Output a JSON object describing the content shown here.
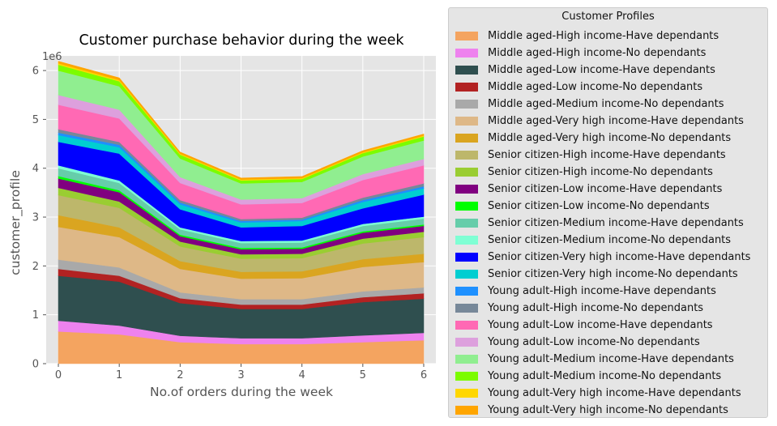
{
  "chart_data": {
    "type": "area",
    "stacked": true,
    "title": "Customer purchase behavior during the week",
    "xlabel": "No.of orders during the week",
    "ylabel": "customer_profile",
    "y_scale_label": "1e6",
    "x": [
      0,
      1,
      2,
      3,
      4,
      5,
      6
    ],
    "xlim": [
      -0.2,
      6.2
    ],
    "ylim": [
      0,
      6.3
    ],
    "x_ticks": [
      "0",
      "1",
      "2",
      "3",
      "4",
      "5",
      "6"
    ],
    "y_ticks": [
      "0",
      "1",
      "2",
      "3",
      "4",
      "5",
      "6"
    ],
    "y_tick_values": [
      0,
      1,
      2,
      3,
      4,
      5,
      6
    ],
    "grid": true,
    "legend_title": "Customer Profiles",
    "legend_position": "outside-right",
    "series": [
      {
        "name": "Middle aged-High income-Have dependants",
        "color": "#f4a460",
        "values": [
          0.66,
          0.6,
          0.44,
          0.4,
          0.4,
          0.44,
          0.48
        ]
      },
      {
        "name": "Middle aged-High income-No dependants",
        "color": "#ee82ee",
        "values": [
          0.22,
          0.18,
          0.13,
          0.12,
          0.12,
          0.14,
          0.15
        ]
      },
      {
        "name": "Middle aged-Low income-Have dependants",
        "color": "#2f4f4f",
        "values": [
          0.92,
          0.9,
          0.67,
          0.6,
          0.6,
          0.68,
          0.7
        ]
      },
      {
        "name": "Middle aged-Low income-No dependants",
        "color": "#b22222",
        "values": [
          0.14,
          0.12,
          0.1,
          0.09,
          0.09,
          0.1,
          0.11
        ]
      },
      {
        "name": "Middle aged-Medium income-No dependants",
        "color": "#a9a9a9",
        "values": [
          0.19,
          0.17,
          0.12,
          0.11,
          0.11,
          0.12,
          0.12
        ]
      },
      {
        "name": "Middle aged-Very high income-Have dependants",
        "color": "#deb887",
        "values": [
          0.67,
          0.62,
          0.48,
          0.42,
          0.43,
          0.5,
          0.52
        ]
      },
      {
        "name": "Middle aged-Very high income-No dependants",
        "color": "#daa520",
        "values": [
          0.24,
          0.2,
          0.16,
          0.14,
          0.14,
          0.16,
          0.17
        ]
      },
      {
        "name": "Senior citizen-High income-Have dependants",
        "color": "#bdb76b",
        "values": [
          0.41,
          0.4,
          0.3,
          0.27,
          0.27,
          0.32,
          0.34
        ]
      },
      {
        "name": "Senior citizen-High income-No dependants",
        "color": "#9acd32",
        "values": [
          0.15,
          0.13,
          0.1,
          0.09,
          0.09,
          0.1,
          0.11
        ]
      },
      {
        "name": "Senior citizen-Low income-Have dependants",
        "color": "#800080",
        "values": [
          0.19,
          0.19,
          0.11,
          0.1,
          0.1,
          0.12,
          0.12
        ]
      },
      {
        "name": "Senior citizen-Low income-No dependants",
        "color": "#00ff00",
        "values": [
          0.05,
          0.04,
          0.03,
          0.03,
          0.03,
          0.03,
          0.03
        ]
      },
      {
        "name": "Senior citizen-Medium income-Have dependants",
        "color": "#66cdaa",
        "values": [
          0.16,
          0.15,
          0.11,
          0.1,
          0.1,
          0.11,
          0.12
        ]
      },
      {
        "name": "Senior citizen-Medium income-No dependants",
        "color": "#7fffd4",
        "values": [
          0.06,
          0.05,
          0.04,
          0.04,
          0.04,
          0.04,
          0.04
        ]
      },
      {
        "name": "Senior citizen-Very high income-Have dependants",
        "color": "#0000ff",
        "values": [
          0.48,
          0.55,
          0.37,
          0.28,
          0.3,
          0.32,
          0.45
        ]
      },
      {
        "name": "Senior citizen-Very high income-No dependants",
        "color": "#00ced1",
        "values": [
          0.14,
          0.13,
          0.1,
          0.1,
          0.1,
          0.13,
          0.13
        ]
      },
      {
        "name": "Young adult-High income-Have dependants",
        "color": "#1e90ff",
        "values": [
          0.05,
          0.05,
          0.04,
          0.03,
          0.03,
          0.04,
          0.04
        ]
      },
      {
        "name": "Young adult-High income-No dependants",
        "color": "#778899",
        "values": [
          0.07,
          0.06,
          0.05,
          0.04,
          0.04,
          0.05,
          0.06
        ]
      },
      {
        "name": "Young adult-Low income-Have dependants",
        "color": "#ff69b4",
        "values": [
          0.5,
          0.48,
          0.35,
          0.3,
          0.3,
          0.36,
          0.37
        ]
      },
      {
        "name": "Young adult-Low income-No dependants",
        "color": "#dda0dd",
        "values": [
          0.2,
          0.18,
          0.12,
          0.1,
          0.1,
          0.12,
          0.13
        ]
      },
      {
        "name": "Young adult-Medium income-Have dependants",
        "color": "#90ee90",
        "values": [
          0.5,
          0.48,
          0.38,
          0.33,
          0.33,
          0.36,
          0.38
        ]
      },
      {
        "name": "Young adult-Medium income-No dependants",
        "color": "#7cfc00",
        "values": [
          0.12,
          0.1,
          0.08,
          0.06,
          0.06,
          0.07,
          0.08
        ]
      },
      {
        "name": "Young adult-Very high income-Have dependants",
        "color": "#ffd700",
        "values": [
          0.03,
          0.03,
          0.02,
          0.02,
          0.02,
          0.02,
          0.02
        ]
      },
      {
        "name": "Young adult-Very high income-No dependants",
        "color": "#ffa500",
        "values": [
          0.04,
          0.04,
          0.03,
          0.03,
          0.03,
          0.03,
          0.03
        ]
      }
    ]
  }
}
